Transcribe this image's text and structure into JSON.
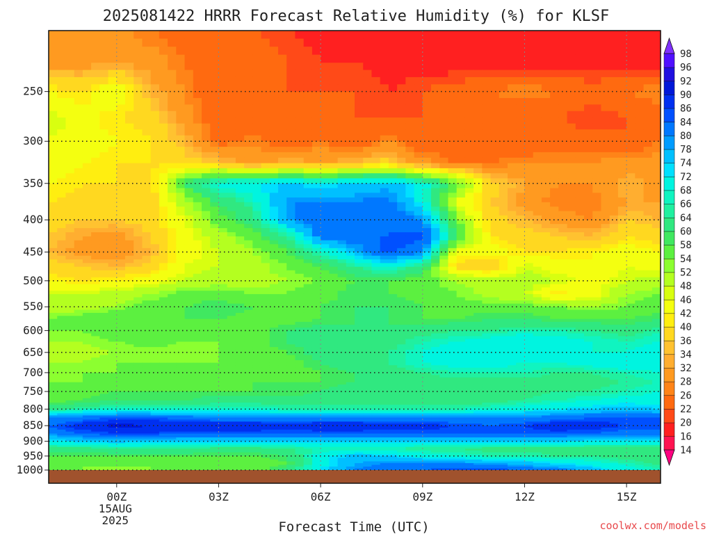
{
  "chart_data": {
    "type": "heatmap",
    "title": "2025081422 HRRR Forecast Relative Humidity (%) for KLSF",
    "xlabel": "Forecast Time (UTC)",
    "ylabel": "",
    "x_hours": [
      -2,
      -1,
      0,
      1,
      2,
      3,
      4,
      5,
      6,
      7,
      8,
      9,
      10,
      11,
      12,
      13,
      14,
      15,
      16
    ],
    "x_ticks": [
      {
        "hour": 0,
        "label": "00Z",
        "sub1": "15AUG",
        "sub2": "2025"
      },
      {
        "hour": 3,
        "label": "03Z"
      },
      {
        "hour": 6,
        "label": "06Z"
      },
      {
        "hour": 9,
        "label": "09Z"
      },
      {
        "hour": 12,
        "label": "12Z"
      },
      {
        "hour": 15,
        "label": "15Z"
      }
    ],
    "y_pressure_levels": [
      200,
      225,
      250,
      275,
      300,
      325,
      350,
      375,
      400,
      425,
      450,
      475,
      500,
      525,
      550,
      575,
      600,
      625,
      650,
      675,
      700,
      725,
      750,
      775,
      800,
      825,
      850,
      875,
      900,
      925,
      950,
      975,
      1000
    ],
    "y_tick_labels": [
      "250",
      "300",
      "350",
      "400",
      "450",
      "500",
      "550",
      "600",
      "650",
      "700",
      "750",
      "800",
      "850",
      "900",
      "950",
      "1000"
    ],
    "ylim": [
      1000,
      200
    ],
    "y_scale": "log",
    "values_rh_percent": [
      [
        28,
        30,
        30,
        26,
        24,
        22,
        22,
        20,
        18,
        16,
        16,
        16,
        16,
        16,
        16,
        16,
        16,
        16,
        16
      ],
      [
        30,
        30,
        32,
        30,
        26,
        22,
        24,
        22,
        20,
        20,
        18,
        18,
        18,
        18,
        18,
        18,
        18,
        18,
        18
      ],
      [
        42,
        40,
        46,
        34,
        28,
        22,
        22,
        22,
        22,
        22,
        20,
        22,
        24,
        26,
        28,
        26,
        24,
        26,
        28
      ],
      [
        48,
        44,
        40,
        38,
        30,
        22,
        22,
        22,
        22,
        22,
        22,
        22,
        24,
        24,
        22,
        22,
        20,
        22,
        24
      ],
      [
        46,
        44,
        42,
        40,
        34,
        24,
        28,
        22,
        26,
        22,
        28,
        22,
        22,
        22,
        22,
        24,
        24,
        22,
        26
      ],
      [
        44,
        42,
        40,
        40,
        38,
        36,
        30,
        34,
        32,
        34,
        38,
        30,
        26,
        26,
        28,
        28,
        28,
        30,
        30
      ],
      [
        42,
        40,
        40,
        38,
        60,
        70,
        72,
        74,
        72,
        74,
        76,
        70,
        56,
        38,
        32,
        28,
        28,
        34,
        30
      ],
      [
        40,
        38,
        40,
        38,
        50,
        60,
        66,
        80,
        80,
        80,
        82,
        70,
        46,
        36,
        30,
        26,
        26,
        32,
        32
      ],
      [
        38,
        36,
        36,
        38,
        46,
        56,
        62,
        78,
        84,
        82,
        84,
        80,
        54,
        38,
        34,
        30,
        28,
        36,
        34
      ],
      [
        36,
        32,
        30,
        36,
        44,
        50,
        56,
        64,
        82,
        84,
        84,
        86,
        60,
        40,
        38,
        36,
        34,
        40,
        38
      ],
      [
        34,
        30,
        28,
        34,
        44,
        48,
        52,
        58,
        66,
        76,
        86,
        80,
        44,
        44,
        40,
        40,
        42,
        44,
        42
      ],
      [
        38,
        36,
        34,
        38,
        46,
        48,
        50,
        54,
        58,
        64,
        70,
        62,
        38,
        36,
        48,
        44,
        42,
        46,
        44
      ],
      [
        42,
        40,
        42,
        44,
        48,
        50,
        50,
        52,
        54,
        58,
        58,
        56,
        52,
        50,
        50,
        48,
        44,
        48,
        50
      ],
      [
        48,
        48,
        50,
        52,
        56,
        56,
        54,
        54,
        56,
        60,
        58,
        56,
        54,
        50,
        48,
        40,
        44,
        52,
        54
      ],
      [
        48,
        50,
        52,
        56,
        58,
        60,
        58,
        56,
        58,
        60,
        60,
        58,
        56,
        56,
        56,
        54,
        52,
        54,
        56
      ],
      [
        54,
        56,
        58,
        58,
        58,
        58,
        56,
        56,
        58,
        60,
        60,
        58,
        58,
        60,
        60,
        58,
        58,
        58,
        60
      ],
      [
        54,
        54,
        56,
        58,
        56,
        54,
        56,
        60,
        62,
        60,
        60,
        62,
        64,
        64,
        66,
        66,
        64,
        62,
        66
      ],
      [
        52,
        52,
        54,
        56,
        54,
        54,
        56,
        60,
        62,
        60,
        62,
        66,
        68,
        70,
        72,
        70,
        68,
        66,
        68
      ],
      [
        50,
        50,
        52,
        52,
        52,
        54,
        56,
        58,
        62,
        62,
        64,
        68,
        72,
        72,
        70,
        70,
        68,
        68,
        70
      ],
      [
        52,
        52,
        54,
        54,
        54,
        54,
        54,
        56,
        60,
        62,
        64,
        68,
        70,
        70,
        68,
        68,
        70,
        72,
        72
      ],
      [
        52,
        54,
        54,
        56,
        56,
        56,
        56,
        56,
        58,
        60,
        62,
        64,
        66,
        66,
        66,
        64,
        64,
        66,
        68
      ],
      [
        54,
        54,
        56,
        56,
        56,
        56,
        58,
        58,
        58,
        60,
        62,
        62,
        62,
        62,
        62,
        62,
        62,
        64,
        66
      ],
      [
        56,
        56,
        58,
        58,
        58,
        58,
        58,
        58,
        60,
        62,
        62,
        62,
        62,
        62,
        62,
        64,
        64,
        66,
        68
      ],
      [
        56,
        58,
        60,
        60,
        60,
        62,
        62,
        62,
        62,
        62,
        62,
        62,
        62,
        62,
        64,
        66,
        68,
        70,
        70
      ],
      [
        62,
        66,
        68,
        68,
        68,
        68,
        68,
        66,
        66,
        66,
        66,
        66,
        66,
        68,
        70,
        72,
        74,
        76,
        74
      ],
      [
        80,
        82,
        84,
        84,
        82,
        80,
        80,
        80,
        80,
        80,
        80,
        80,
        80,
        80,
        80,
        82,
        84,
        84,
        84
      ],
      [
        84,
        88,
        92,
        90,
        90,
        90,
        90,
        88,
        90,
        90,
        88,
        88,
        86,
        84,
        86,
        90,
        88,
        86,
        86
      ],
      [
        80,
        84,
        86,
        86,
        84,
        84,
        84,
        84,
        84,
        84,
        84,
        84,
        84,
        84,
        84,
        84,
        84,
        82,
        82
      ],
      [
        72,
        74,
        76,
        74,
        74,
        74,
        74,
        74,
        74,
        74,
        74,
        74,
        74,
        74,
        74,
        74,
        72,
        72,
        72
      ],
      [
        62,
        62,
        64,
        64,
        64,
        62,
        62,
        64,
        66,
        66,
        66,
        64,
        64,
        62,
        62,
        62,
        62,
        62,
        62
      ],
      [
        58,
        58,
        58,
        58,
        58,
        58,
        58,
        60,
        70,
        76,
        74,
        70,
        68,
        66,
        66,
        64,
        64,
        62,
        62
      ],
      [
        56,
        54,
        56,
        54,
        54,
        54,
        54,
        58,
        70,
        78,
        80,
        80,
        80,
        78,
        76,
        72,
        70,
        66,
        62
      ],
      [
        56,
        54,
        52,
        54,
        56,
        56,
        56,
        62,
        72,
        80,
        84,
        84,
        86,
        86,
        84,
        82,
        76,
        70,
        66
      ]
    ],
    "colorbar": {
      "labels": [
        98,
        96,
        92,
        90,
        86,
        84,
        80,
        78,
        74,
        72,
        68,
        66,
        64,
        60,
        58,
        54,
        52,
        48,
        46,
        42,
        40,
        36,
        34,
        32,
        28,
        26,
        22,
        20,
        16,
        14
      ],
      "colors": [
        "#ff0080",
        "#ff1450",
        "#ff2020",
        "#ff4a18",
        "#ff6a10",
        "#ff8418",
        "#ff9a20",
        "#ffae30",
        "#ffc230",
        "#ffd820",
        "#ffee10",
        "#f4ff10",
        "#d8ff10",
        "#b4ff20",
        "#8cff30",
        "#5cf040",
        "#40e860",
        "#30e880",
        "#20f0a0",
        "#10f4c0",
        "#00f4e0",
        "#00e0ff",
        "#00c0ff",
        "#009cff",
        "#0078ff",
        "#0050ff",
        "#0030f0",
        "#0018d8",
        "#2010e0",
        "#5010ff",
        "#8030ff"
      ]
    },
    "ground_color": "#a0522d",
    "credit": "coolwx.com/models"
  }
}
